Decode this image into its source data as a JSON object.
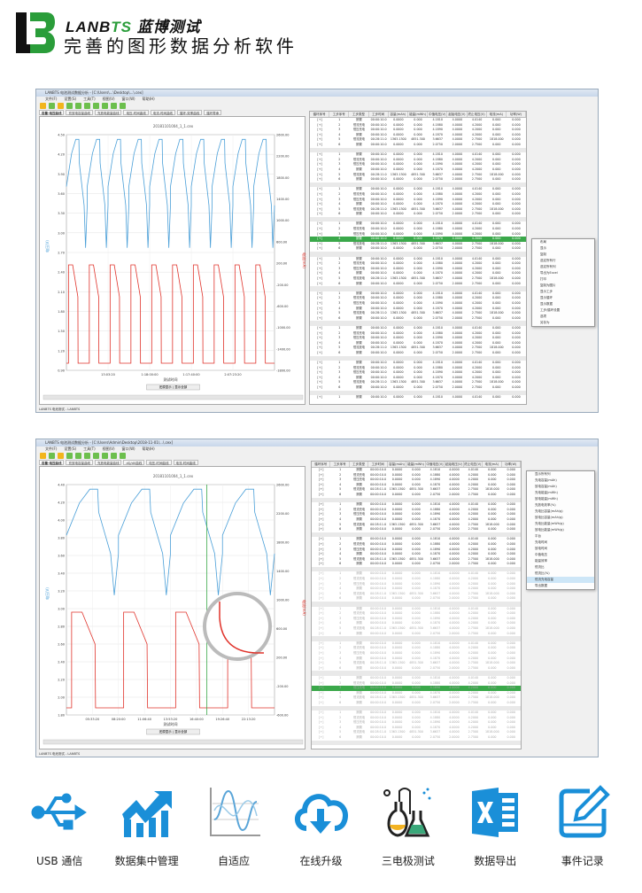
{
  "brand": {
    "name_prefix": "LANB",
    "name_ts": "TS",
    "name_cn": "蓝博测试",
    "slogan": "完善的图形数据分析软件",
    "accent": "#2a9d3a"
  },
  "screens": [
    {
      "title": "LANBTS 电池测试数据分析 - [C:\\Users\\...\\Desktop\\...\\.cex]",
      "menu": [
        "文件(F)",
        "设置(S)",
        "工具(T)",
        "视图(V)",
        "窗口(W)",
        "帮助(H)"
      ],
      "tabs": [
        "容量-电压曲线",
        "充放电容量曲线",
        "充放电能量曲线",
        "电压-时间曲线",
        "电流-时间曲线",
        "循环-效率曲线",
        "循环寿命"
      ],
      "chart_title": "20181101004_1_1.cex",
      "x_label": "测试时间",
      "x_ticks": [
        "13:03:20",
        "1:18:00:00",
        "1:17:40:00",
        "2:07:23:20"
      ],
      "left_axis_label": "电压(V)",
      "right_axis_label": "电流(mA)",
      "left_ticks": [
        "4.50",
        "4.20",
        "3.90",
        "3.60",
        "3.30",
        "3.00",
        "2.70",
        "2.40",
        "2.10",
        "1.80",
        "1.50",
        "1.20",
        "0.90"
      ],
      "right_ticks": [
        "2600.00",
        "2200.00",
        "1800.00",
        "1400.00",
        "1000.00",
        "600.00",
        "200.00",
        "-200.00",
        "-600.00",
        "-1000.00",
        "-1400.00",
        "-1800.00"
      ],
      "nav_button": "还原显示 | 显示全部",
      "status": "LANBTS 电池测试 - LANBTS"
    },
    {
      "title": "LANBTS 电池测试数据分析 - [C:\\Users\\Admin\\Desktop\\2018-11-01\\...\\.cex]",
      "menu": [
        "文件(F)",
        "设置(S)",
        "工具(T)",
        "视图(V)",
        "窗口(W)",
        "帮助(H)"
      ],
      "tabs": [
        "容量-电压曲线",
        "充放电容量曲线",
        "充放电能量曲线",
        "dQ/dV曲线",
        "电压-时间曲线",
        "电流-时间曲线"
      ],
      "chart_title": "20181101004_1_1.cex",
      "x_label": "测试时间",
      "x_ticks": [
        "05:33:20",
        "08:20:00",
        "11:06:40",
        "13:53:20",
        "16:40:00",
        "19:26:40",
        "22:13:20"
      ],
      "left_axis_label": "电压(V)",
      "right_axis_label": "电流(mA)",
      "left_ticks": [
        "4.40",
        "4.20",
        "4.00",
        "3.80",
        "3.60",
        "3.40",
        "3.20",
        "3.00",
        "2.80",
        "2.60",
        "2.40",
        "2.20",
        "2.00",
        "1.80"
      ],
      "right_ticks": [
        "2600.00",
        "2200.00",
        "1800.00",
        "1400.00",
        "1000.00",
        "600.00",
        "200.00",
        "-200.00",
        "-600.00"
      ],
      "nav_button": "还原显示 | 显示全部",
      "status": "LANBTS 电池测试 - LANBTS"
    }
  ],
  "table": {
    "columns": [
      "循环序号",
      "工步序号",
      "工步类型",
      "工步时间",
      "容量(mAh)",
      "能量(mWh)",
      "中值电压(V)",
      "起始电压(V)",
      "终止电压(V)",
      "电流(mA)",
      "功率(W)"
    ],
    "rows": [
      [
        "[+]",
        "1",
        "搁置",
        "00:00:10.0",
        "0.0000",
        "0.000",
        "4.1810",
        "4.0000",
        "4.0140",
        "0.000",
        "0.000"
      ],
      [
        "[+]",
        "2",
        "恒流充电",
        "00:00:10.0",
        "0.0000",
        "0.000",
        "4.1880",
        "4.0000",
        "4.2000",
        "0.000",
        "0.000"
      ],
      [
        "[+]",
        "3",
        "恒压充电",
        "00:00:10.0",
        "0.0000",
        "0.000",
        "4.1890",
        "4.0000",
        "4.2000",
        "0.000",
        "0.000"
      ],
      [
        "[+]",
        "4",
        "搁置",
        "00:00:10.0",
        "0.0000",
        "0.000",
        "4.1870",
        "4.0000",
        "4.2000",
        "0.000",
        "0.000"
      ],
      [
        "[+]",
        "5",
        "恒流放电",
        "00:28:11.0",
        "1363.1300",
        "4851.300",
        "3.6637",
        "4.0000",
        "2.7500",
        "1818.000",
        "0.000"
      ],
      [
        "[+]",
        "6",
        "搁置",
        "00:00:10.0",
        "0.0000",
        "0.000",
        "2.0750",
        "2.0000",
        "2.7500",
        "0.000",
        "0.000"
      ]
    ],
    "row_pattern": [
      "normal",
      "normal",
      "normal",
      "normal",
      "normal",
      "normal",
      "sep"
    ]
  },
  "context_menu_1": [
    "布局",
    "显示",
    "复制",
    "选定所有行",
    "选定所有列",
    "导出为Excel",
    "打印",
    "复制为图片",
    "显示工步",
    "显示循环",
    "显示数据",
    "工步/循环设置",
    "选项",
    "另存为"
  ],
  "context_menu_2": [
    "显示所有列",
    "充电容量(mAh)",
    "放电容量(mAh)",
    "充电能量(mWh)",
    "放电能量(mWh)",
    "充放电效率(%)",
    "充电比容量(mAh/g)",
    "放电比容量(mAh/g)",
    "充电比能量(mWh/g)",
    "放电比能量(mWh/g)",
    "平台",
    "充电时间",
    "放电时间",
    "中值电压",
    "能量效率",
    "恒流比",
    "恒流比(%)",
    "恒流充电容量",
    "导出数据"
  ],
  "features": [
    {
      "label": "USB 通信",
      "icon": "usb-icon"
    },
    {
      "label": "数据集中管理",
      "icon": "chart-growth-icon"
    },
    {
      "label": "自适应",
      "icon": "waveform-icon"
    },
    {
      "label": "在线升级",
      "icon": "cloud-download-icon"
    },
    {
      "label": "三电极测试",
      "icon": "flask-icon"
    },
    {
      "label": "数据导出",
      "icon": "excel-icon"
    },
    {
      "label": "事件记录",
      "icon": "edit-note-icon"
    }
  ],
  "colors": {
    "voltage": "#4a9fd8",
    "current": "#e0332b",
    "icon": "#1a8fd8",
    "highlight": "#3aa84a"
  }
}
